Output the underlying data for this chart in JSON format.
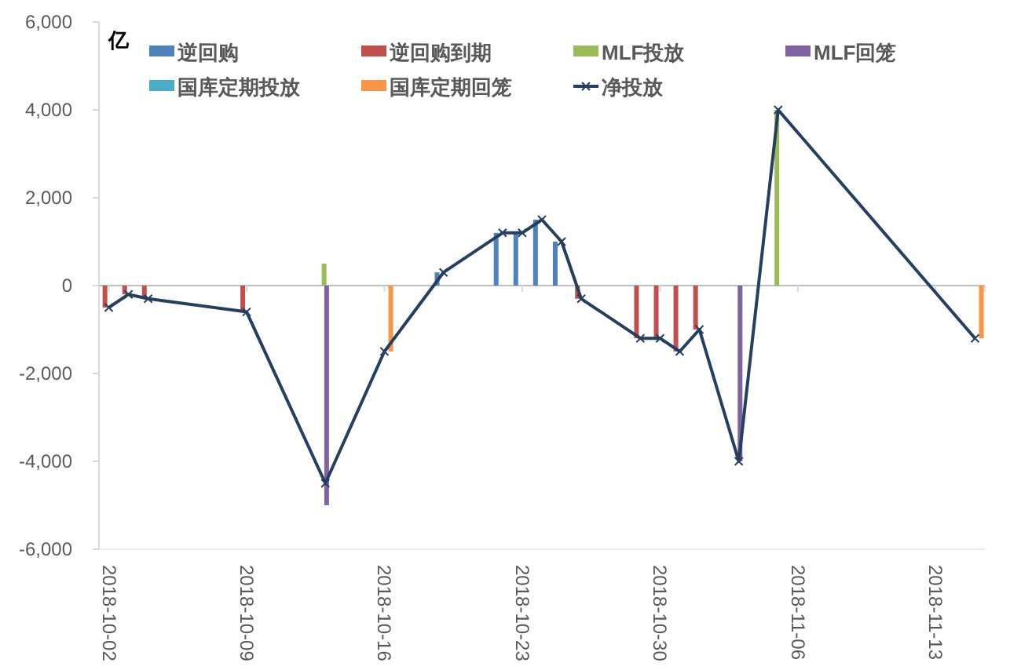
{
  "chart_data": {
    "type": "bar",
    "ylabel": "亿",
    "xlim": [
      "2018-10-01T12:00",
      "2018-11-15T12:00"
    ],
    "xticks": [
      "2018-10-02",
      "2018-10-09",
      "2018-10-16",
      "2018-10-23",
      "2018-10-30",
      "2018-11-06",
      "2018-11-13"
    ],
    "ylim": [
      -6000,
      6000
    ],
    "yticks": [
      {
        "value": -6000,
        "label": "-6,000"
      },
      {
        "value": -4000,
        "label": "-4,000"
      },
      {
        "value": -2000,
        "label": "-2,000"
      },
      0,
      {
        "value": 2000,
        "label": "2,000"
      },
      {
        "value": 4000,
        "label": "4,000"
      },
      {
        "value": 6000,
        "label": "6,000"
      }
    ],
    "legend": "top",
    "series": [
      {
        "name": "逆回购",
        "color": "#4f81bd",
        "x": [
          "2018-10-19",
          "2018-10-22",
          "2018-10-23",
          "2018-10-24",
          "2018-10-25"
        ],
        "values": [
          300,
          1200,
          1200,
          1500,
          1000
        ]
      },
      {
        "name": "逆回购到期",
        "color": "#c0504d",
        "x": [
          "2018-10-02",
          "2018-10-03",
          "2018-10-04",
          "2018-10-09",
          "2018-10-26",
          "2018-10-29",
          "2018-10-30",
          "2018-10-31",
          "2018-11-01"
        ],
        "values": [
          -500,
          -200,
          -300,
          -600,
          -300,
          -1200,
          -1200,
          -1500,
          -1000
        ]
      },
      {
        "name": "MLF投放",
        "color": "#9bbb59",
        "x": [
          "2018-10-13",
          "2018-11-05"
        ],
        "values": [
          500,
          4000
        ]
      },
      {
        "name": "MLF回笼",
        "color": "#8064a2",
        "x": [
          "2018-10-13",
          "2018-11-03"
        ],
        "values": [
          -5000,
          -4000
        ]
      },
      {
        "name": "国库定期投放",
        "color": "#4bacc6"
      },
      {
        "name": "国库定期回笼",
        "color": "#f79646",
        "x": [
          "2018-10-16",
          "2018-11-15"
        ],
        "values": [
          -1500,
          -1200
        ]
      },
      {
        "name": "净投放",
        "type": "line",
        "color": "#243f60",
        "marker": "cross",
        "x": [
          "2018-10-02",
          "2018-10-03",
          "2018-10-04",
          "2018-10-09",
          "2018-10-13",
          "2018-10-16",
          "2018-10-19",
          "2018-10-22",
          "2018-10-23",
          "2018-10-24",
          "2018-10-25",
          "2018-10-26",
          "2018-10-29",
          "2018-10-30",
          "2018-10-31",
          "2018-11-01",
          "2018-11-03",
          "2018-11-05",
          "2018-11-15"
        ],
        "values": [
          -500,
          -200,
          -300,
          -600,
          -4500,
          -1500,
          300,
          1200,
          1200,
          1500,
          1000,
          -300,
          -1200,
          -1200,
          -1500,
          -1000,
          -4000,
          4000,
          -1200
        ]
      }
    ]
  }
}
